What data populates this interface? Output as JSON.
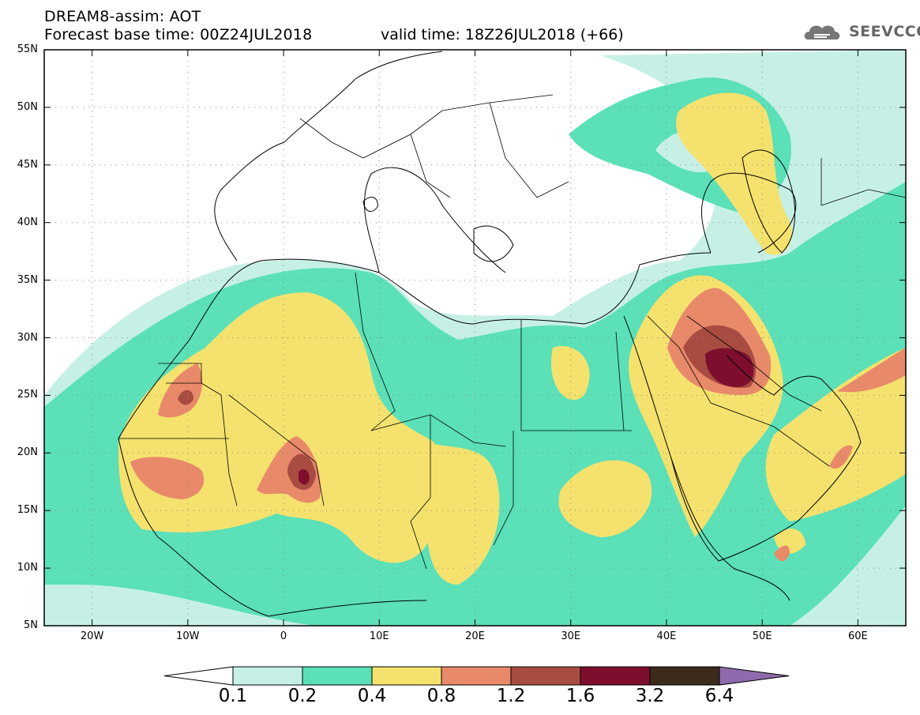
{
  "header": {
    "title_line1": "DREAM8-assim: AOT",
    "title_line2": "Forecast base time: 00Z24JUL2018",
    "valid_time": "valid time: 18Z26JUL2018 (+66)",
    "logo_text": "SEEVCCC",
    "logo_icon": "cloud-logo-icon"
  },
  "map": {
    "lat_labels": [
      "55N",
      "50N",
      "45N",
      "40N",
      "35N",
      "30N",
      "25N",
      "20N",
      "15N",
      "10N",
      "5N"
    ],
    "lon_labels": [
      "20W",
      "10W",
      "0",
      "10E",
      "20E",
      "30E",
      "40E",
      "50E",
      "60E"
    ],
    "colors": {
      "c01": "#c6f0e6",
      "c02": "#5be0b8",
      "c04": "#f5e26e",
      "c08": "#e8896a",
      "c12": "#a84c42",
      "c16": "#7e0e2e",
      "c32": "#3c2a1a",
      "c64": "#8f6aac"
    }
  },
  "colorbar": {
    "labels": [
      "0.1",
      "0.2",
      "0.4",
      "0.8",
      "1.2",
      "1.6",
      "3.2",
      "6.4"
    ],
    "colors": [
      "#ffffff",
      "#c6f0e6",
      "#5be0b8",
      "#f5e26e",
      "#e8896a",
      "#a84c42",
      "#7e0e2e",
      "#3c2a1a",
      "#8f6aac"
    ]
  }
}
